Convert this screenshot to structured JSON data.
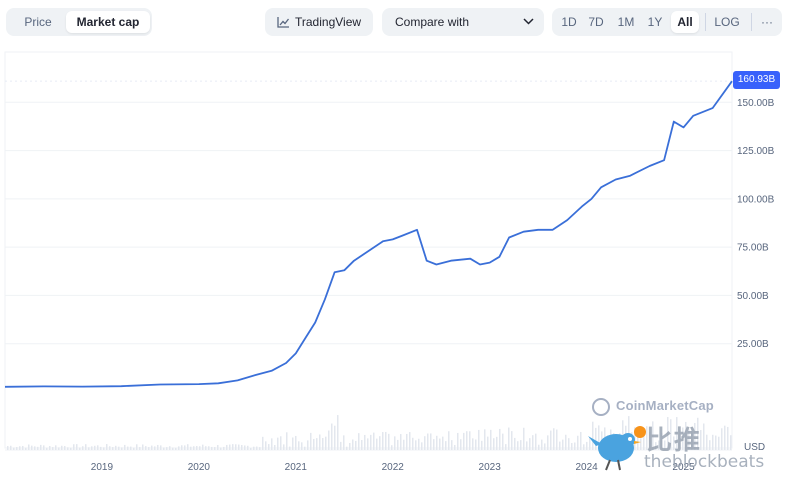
{
  "toolbar": {
    "view_tabs": [
      {
        "label": "Price",
        "active": false
      },
      {
        "label": "Market cap",
        "active": true
      }
    ],
    "tradingview_label": "TradingView",
    "compare_label": "Compare with",
    "ranges": [
      {
        "label": "1D",
        "active": false
      },
      {
        "label": "7D",
        "active": false
      },
      {
        "label": "1M",
        "active": false
      },
      {
        "label": "1Y",
        "active": false
      },
      {
        "label": "All",
        "active": true
      }
    ],
    "log_label": "LOG",
    "more_label": "···"
  },
  "chart": {
    "current_value": "160.93B",
    "currency": "USD",
    "watermark": "CoinMarketCap",
    "site_watermark_cn": "比推",
    "site_watermark_url": "theblockbeats"
  },
  "chart_data": {
    "type": "line",
    "unit": "B",
    "ylim": [
      0,
      175
    ],
    "y_ticks": [
      25,
      50,
      75,
      100,
      125,
      150
    ],
    "y_tick_labels": [
      "25.00B",
      "50.00B",
      "75.00B",
      "100.00B",
      "125.00B",
      "150.00B"
    ],
    "x_ticks": [
      "2019",
      "2020",
      "2021",
      "2022",
      "2023",
      "2024",
      "2025"
    ],
    "xlim": [
      2018.0,
      2025.5
    ],
    "grid": true,
    "color": "#3a6fd8",
    "x": [
      2018.0,
      2018.4,
      2018.8,
      2019.2,
      2019.6,
      2020.0,
      2020.2,
      2020.4,
      2020.6,
      2020.75,
      2020.9,
      2021.0,
      2021.1,
      2021.2,
      2021.3,
      2021.4,
      2021.5,
      2021.6,
      2021.75,
      2021.9,
      2022.0,
      2022.1,
      2022.25,
      2022.35,
      2022.45,
      2022.6,
      2022.8,
      2022.9,
      2023.0,
      2023.1,
      2023.2,
      2023.35,
      2023.5,
      2023.65,
      2023.8,
      2023.95,
      2024.05,
      2024.15,
      2024.3,
      2024.45,
      2024.65,
      2024.8,
      2024.9,
      2025.0,
      2025.1,
      2025.3,
      2025.5
    ],
    "values": [
      2.7,
      2.9,
      2.8,
      3.0,
      3.9,
      4.1,
      4.5,
      6.0,
      9.0,
      11.0,
      15.0,
      20.0,
      28.0,
      36.0,
      48.0,
      62.0,
      63.0,
      68.0,
      73.0,
      78.0,
      79.0,
      81.0,
      84.0,
      68.0,
      66.0,
      68.0,
      69.0,
      66.0,
      67.0,
      70.0,
      80.0,
      83.0,
      84.0,
      84.0,
      89.0,
      96.0,
      100.0,
      106.0,
      110.0,
      112.0,
      117.0,
      120.0,
      140.0,
      137.0,
      143.0,
      147.0,
      160.93
    ]
  }
}
